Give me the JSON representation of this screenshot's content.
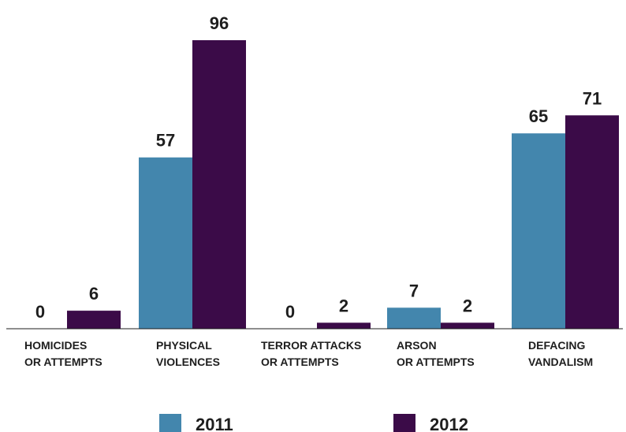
{
  "chart_data": {
    "type": "bar",
    "categories": [
      [
        "HOMICIDES",
        "OR ATTEMPTS"
      ],
      [
        "PHYSICAL",
        "VIOLENCES"
      ],
      [
        "TERROR ATTACKS",
        "OR ATTEMPTS"
      ],
      [
        "ARSON",
        "OR ATTEMPTS"
      ],
      [
        "DEFACING",
        "VANDALISM"
      ]
    ],
    "series": [
      {
        "name": "2011",
        "color": "#4386ad",
        "values": [
          0,
          57,
          0,
          7,
          65
        ]
      },
      {
        "name": "2012",
        "color": "#3b0b48",
        "values": [
          6,
          96,
          2,
          2,
          71
        ]
      }
    ],
    "ylim": [
      0,
      96
    ],
    "grid": false,
    "legend": "bottom",
    "title": "",
    "xlabel": "",
    "ylabel": ""
  }
}
